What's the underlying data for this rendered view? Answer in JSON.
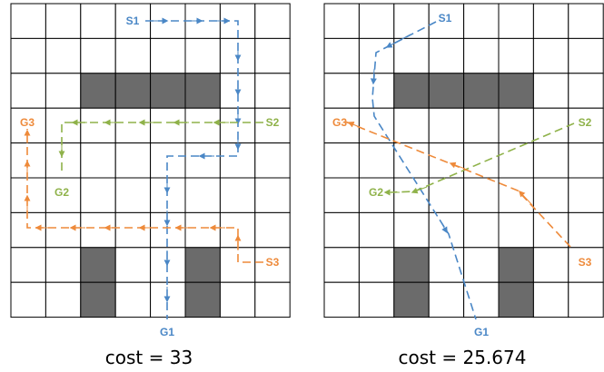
{
  "colors": {
    "blue": "#4a87c6",
    "green": "#8fb24a",
    "orange": "#ee8a3a",
    "obstacle": "#6b6b6b"
  },
  "grids": [
    {
      "cost_label": "cost = 33",
      "robots": [
        {
          "color": "blue",
          "start": "S1",
          "goal": "G1"
        },
        {
          "color": "green",
          "start": "S2",
          "goal": "G2"
        },
        {
          "color": "orange",
          "start": "S3",
          "goal": "G3"
        }
      ]
    },
    {
      "cost_label": "cost = 25.674",
      "robots": [
        {
          "color": "blue",
          "start": "S1",
          "goal": "G1"
        },
        {
          "color": "green",
          "start": "S2",
          "goal": "G2"
        },
        {
          "color": "orange",
          "start": "S3",
          "goal": "G3"
        }
      ]
    }
  ]
}
